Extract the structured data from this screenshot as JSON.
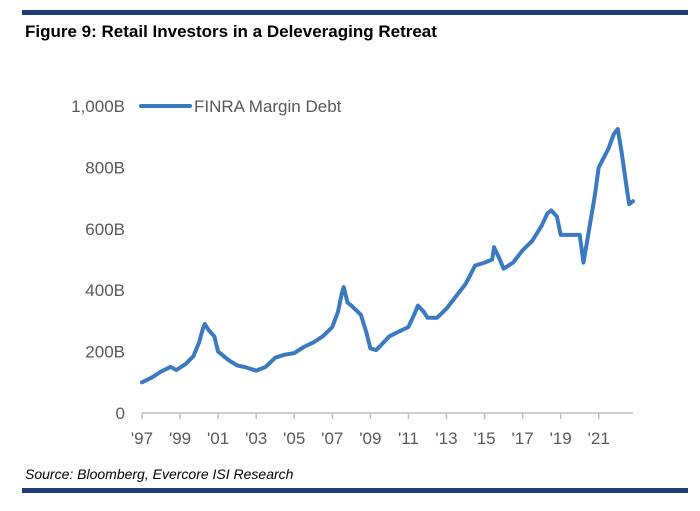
{
  "title": "Figure 9: Retail Investors in a Deleveraging Retreat",
  "source": "Source: Bloomberg, Evercore ISI Research",
  "colors": {
    "rule": "#1f3c75",
    "series": "#3a7ac0",
    "axis_text": "#595959"
  },
  "chart_data": {
    "type": "line",
    "title": "Figure 9: Retail Investors in a Deleveraging Retreat",
    "xlabel": "",
    "ylabel": "",
    "xlim": [
      1997,
      2022.8
    ],
    "ylim": [
      0,
      1000
    ],
    "y_ticks": [
      0,
      200,
      400,
      600,
      800,
      1000
    ],
    "y_tick_labels": [
      "0",
      "200B",
      "400B",
      "600B",
      "800B",
      "1,000B"
    ],
    "x_ticks": [
      1997,
      1999,
      2001,
      2003,
      2005,
      2007,
      2009,
      2011,
      2013,
      2015,
      2017,
      2019,
      2021
    ],
    "x_tick_labels": [
      "'97",
      "'99",
      "'01",
      "'03",
      "'05",
      "'07",
      "'09",
      "'11",
      "'13",
      "'15",
      "'17",
      "'19",
      "'21"
    ],
    "grid": false,
    "legend": "top-left",
    "series": [
      {
        "name": "FINRA Margin Debt",
        "points": [
          [
            1997.0,
            100
          ],
          [
            1997.5,
            115
          ],
          [
            1998.0,
            135
          ],
          [
            1998.5,
            150
          ],
          [
            1998.8,
            140
          ],
          [
            1999.3,
            160
          ],
          [
            1999.7,
            185
          ],
          [
            2000.0,
            230
          ],
          [
            2000.2,
            275
          ],
          [
            2000.3,
            290
          ],
          [
            2000.5,
            270
          ],
          [
            2000.8,
            250
          ],
          [
            2001.0,
            200
          ],
          [
            2001.3,
            185
          ],
          [
            2001.6,
            170
          ],
          [
            2002.0,
            155
          ],
          [
            2002.5,
            148
          ],
          [
            2003.0,
            138
          ],
          [
            2003.5,
            150
          ],
          [
            2004.0,
            180
          ],
          [
            2004.5,
            190
          ],
          [
            2005.0,
            195
          ],
          [
            2005.5,
            215
          ],
          [
            2006.0,
            230
          ],
          [
            2006.5,
            250
          ],
          [
            2007.0,
            280
          ],
          [
            2007.3,
            330
          ],
          [
            2007.5,
            390
          ],
          [
            2007.6,
            410
          ],
          [
            2007.8,
            360
          ],
          [
            2008.0,
            350
          ],
          [
            2008.5,
            320
          ],
          [
            2008.8,
            260
          ],
          [
            2009.0,
            210
          ],
          [
            2009.3,
            205
          ],
          [
            2009.7,
            230
          ],
          [
            2010.0,
            250
          ],
          [
            2010.5,
            265
          ],
          [
            2011.0,
            280
          ],
          [
            2011.3,
            320
          ],
          [
            2011.5,
            350
          ],
          [
            2011.8,
            330
          ],
          [
            2012.0,
            310
          ],
          [
            2012.5,
            310
          ],
          [
            2013.0,
            340
          ],
          [
            2013.5,
            380
          ],
          [
            2014.0,
            420
          ],
          [
            2014.3,
            455
          ],
          [
            2014.5,
            480
          ],
          [
            2015.0,
            490
          ],
          [
            2015.4,
            500
          ],
          [
            2015.5,
            540
          ],
          [
            2015.8,
            500
          ],
          [
            2016.0,
            470
          ],
          [
            2016.5,
            490
          ],
          [
            2017.0,
            530
          ],
          [
            2017.5,
            560
          ],
          [
            2018.0,
            610
          ],
          [
            2018.3,
            650
          ],
          [
            2018.5,
            660
          ],
          [
            2018.8,
            640
          ],
          [
            2019.0,
            580
          ],
          [
            2019.5,
            580
          ],
          [
            2020.0,
            580
          ],
          [
            2020.2,
            490
          ],
          [
            2020.5,
            600
          ],
          [
            2020.8,
            710
          ],
          [
            2021.0,
            800
          ],
          [
            2021.5,
            860
          ],
          [
            2021.8,
            910
          ],
          [
            2022.0,
            925
          ],
          [
            2022.2,
            850
          ],
          [
            2022.5,
            720
          ],
          [
            2022.6,
            680
          ],
          [
            2022.8,
            690
          ]
        ]
      }
    ]
  }
}
